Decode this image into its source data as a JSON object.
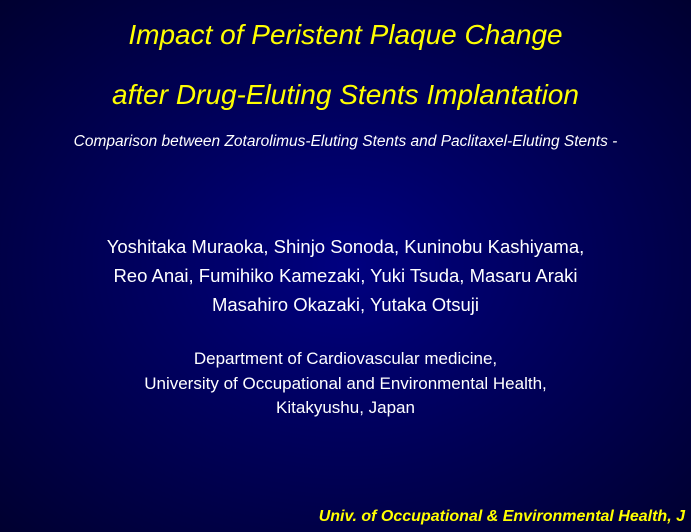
{
  "colors": {
    "background_center": "#000080",
    "background_edge": "#000030",
    "title_text": "#ffff00",
    "body_text": "#ffffff",
    "footer_text": "#ffff00"
  },
  "typography": {
    "title_fontsize": 28,
    "title_style": "italic",
    "subtitle_fontsize": 15.5,
    "subtitle_style": "italic",
    "authors_fontsize": 18.5,
    "affiliation_fontsize": 17,
    "footer_fontsize": 16,
    "footer_style": "bold-italic",
    "font_family": "Arial"
  },
  "title": {
    "line1": "Impact of Peristent Plaque Change",
    "line2": "after Drug-Eluting Stents Implantation"
  },
  "subtitle": "Comparison between Zotarolimus-Eluting Stents and Paclitaxel-Eluting Stents -",
  "authors": {
    "line1": "Yoshitaka Muraoka, Shinjo Sonoda, Kuninobu Kashiyama,",
    "line2": "Reo Anai, Fumihiko Kamezaki, Yuki Tsuda, Masaru Araki",
    "line3": "Masahiro Okazaki, Yutaka Otsuji"
  },
  "affiliation": {
    "line1": "Department of Cardiovascular medicine,",
    "line2": "University of Occupational and Environmental Health,",
    "line3": "Kitakyushu, Japan"
  },
  "footer": "Univ. of Occupational & Environmental Health, J"
}
